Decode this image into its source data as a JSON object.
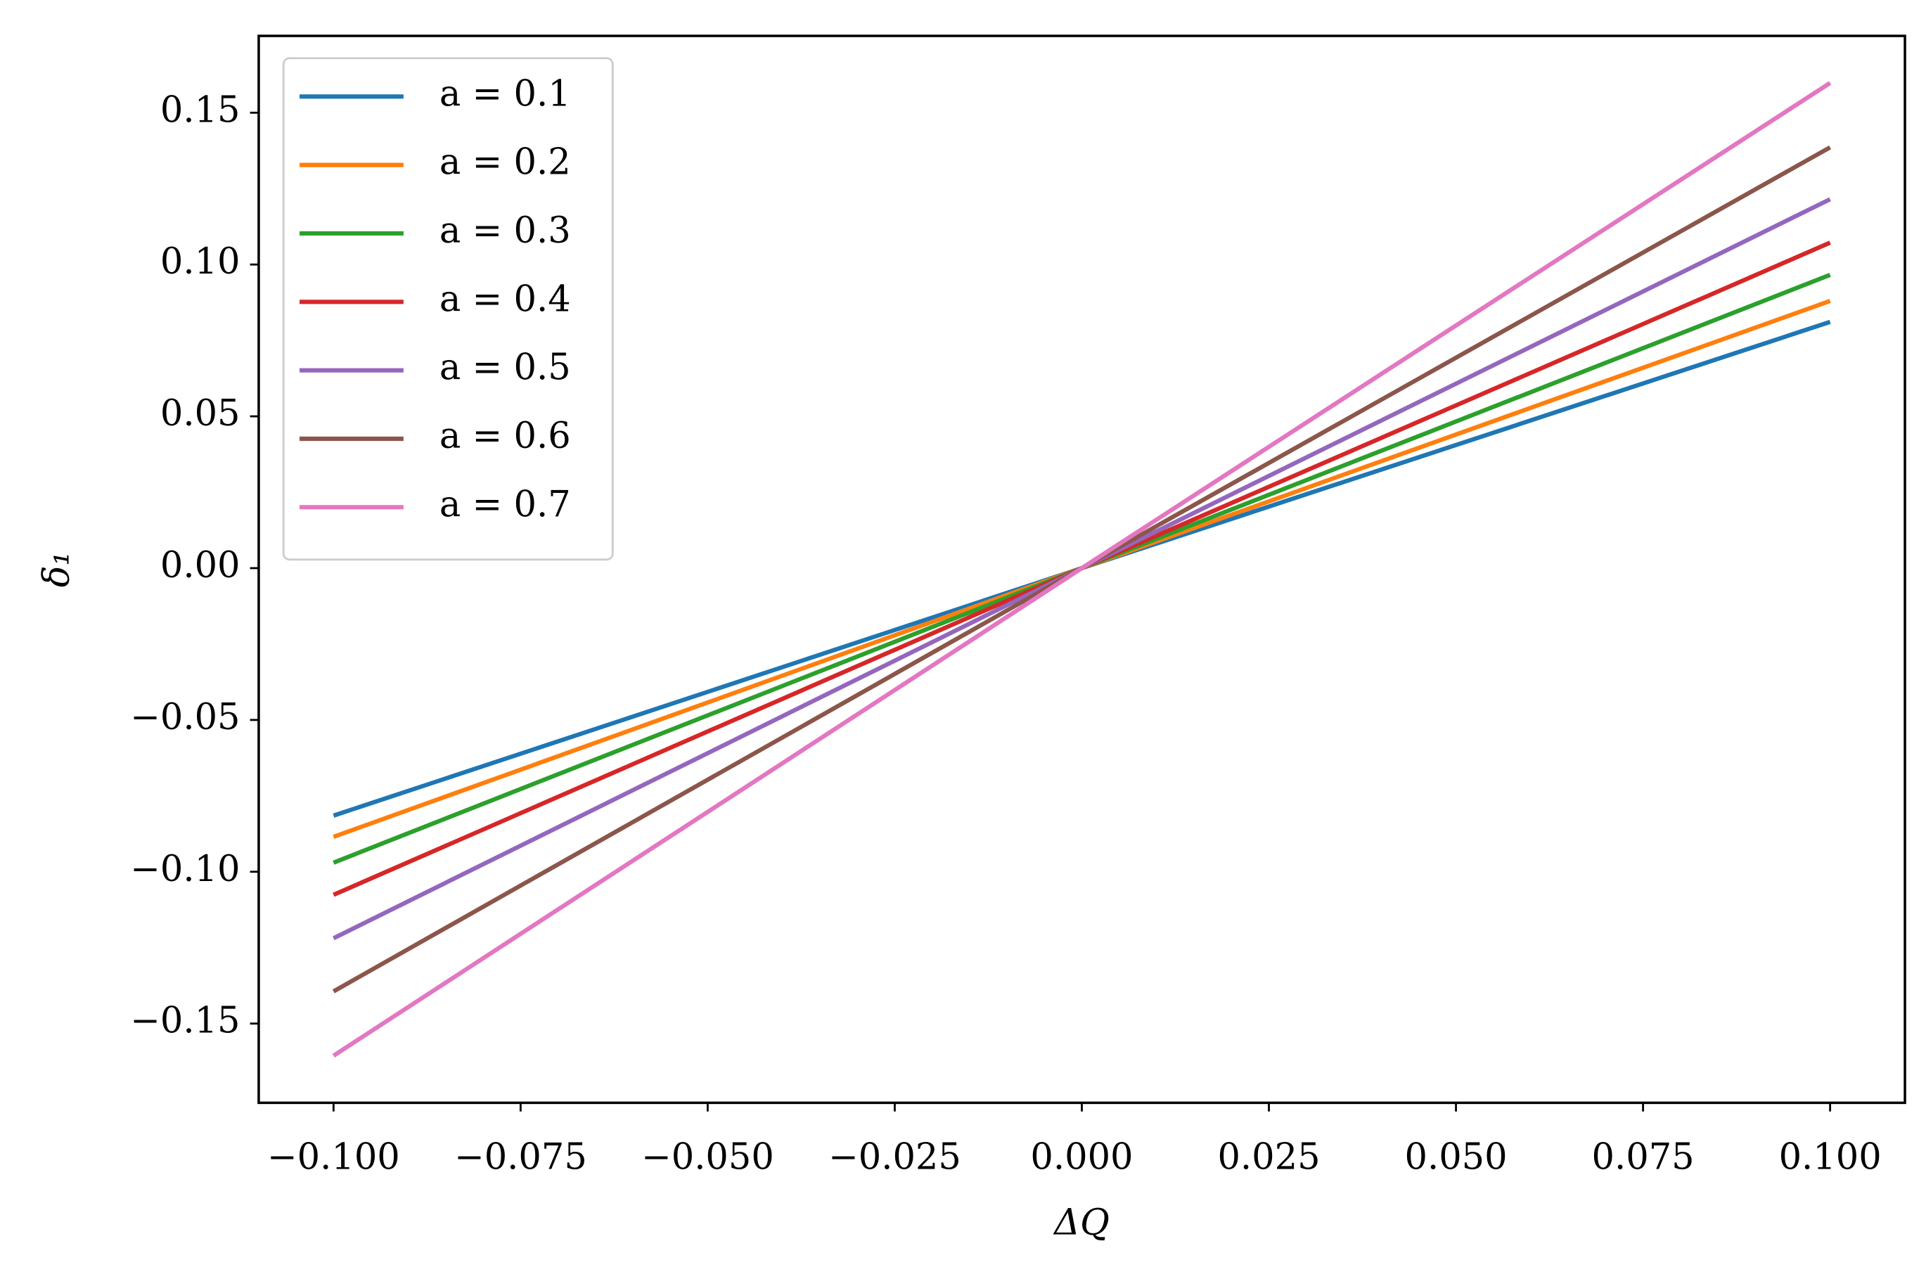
{
  "chart_data": {
    "type": "line",
    "xlabel": "ΔQ",
    "ylabel": "δ₁",
    "x": [
      -0.1,
      0,
      0.1
    ],
    "series": [
      {
        "name": "a = 0.1",
        "color": "#1f77b4",
        "values": [
          -0.0815,
          0,
          0.0811
        ]
      },
      {
        "name": "a = 0.2",
        "color": "#ff7f0e",
        "values": [
          -0.0885,
          0,
          0.088
        ]
      },
      {
        "name": "a = 0.3",
        "color": "#2ca02c",
        "values": [
          -0.097,
          0,
          0.0966
        ]
      },
      {
        "name": "a = 0.4",
        "color": "#d62728",
        "values": [
          -0.1076,
          0,
          0.1072
        ]
      },
      {
        "name": "a = 0.5",
        "color": "#9467bd",
        "values": [
          -0.1219,
          0,
          0.1215
        ]
      },
      {
        "name": "a = 0.6",
        "color": "#8c564b",
        "values": [
          -0.1394,
          0,
          0.1386
        ]
      },
      {
        "name": "a = 0.7",
        "color": "#e377c2",
        "values": [
          -0.1606,
          0,
          0.1598
        ]
      }
    ],
    "xlim": [
      -0.11,
      0.11
    ],
    "xticks": [
      {
        "value": -0.1,
        "label": "−0.100"
      },
      {
        "value": -0.075,
        "label": "−0.075"
      },
      {
        "value": -0.05,
        "label": "−0.050"
      },
      {
        "value": -0.025,
        "label": "−0.025"
      },
      {
        "value": 0,
        "label": "0.000"
      },
      {
        "value": 0.025,
        "label": "0.025"
      },
      {
        "value": 0.05,
        "label": "0.050"
      },
      {
        "value": 0.075,
        "label": "0.075"
      },
      {
        "value": 0.1,
        "label": "0.100"
      }
    ],
    "ylim": [
      -0.1761,
      0.1753
    ],
    "yticks": [
      {
        "value": -0.15,
        "label": "−0.15"
      },
      {
        "value": -0.1,
        "label": "−0.10"
      },
      {
        "value": -0.05,
        "label": "−0.05"
      },
      {
        "value": 0,
        "label": "0.00"
      },
      0.05,
      {
        "value": 0.1,
        "label": "0.10"
      },
      0.15
    ],
    "grid": false,
    "legend": "upper left"
  }
}
